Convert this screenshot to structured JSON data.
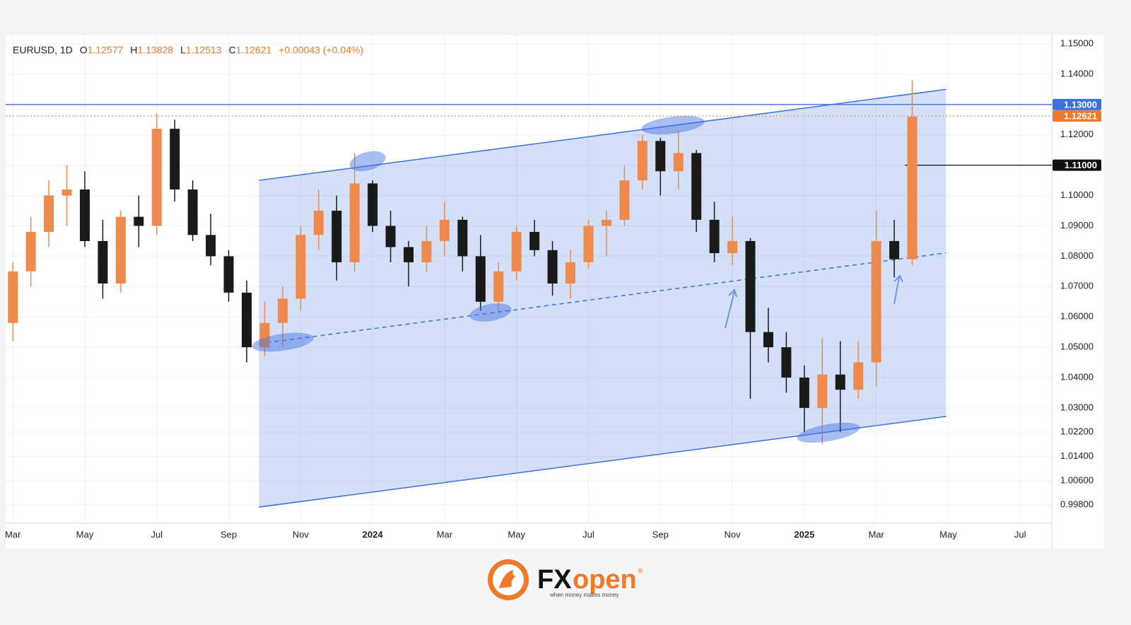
{
  "chart_data": {
    "type": "candlestick",
    "legend": {
      "symbol": "EURUSD, 1D",
      "items": [
        {
          "label": "O",
          "value": "1.12577"
        },
        {
          "label": "H",
          "value": "1.13828"
        },
        {
          "label": "L",
          "value": "1.12513"
        },
        {
          "label": "C",
          "value": "1.12621"
        }
      ],
      "change": "+0.00043 (+0.04%)"
    },
    "x": [
      0,
      0.5,
      1,
      1.5,
      2,
      2.5,
      3,
      3.5,
      4,
      4.5,
      5,
      5.5,
      6,
      6.5,
      7,
      7.5,
      8,
      8.5,
      9,
      9.5,
      10,
      10.5,
      11,
      11.5,
      12,
      12.5,
      13,
      13.5,
      14,
      14.5,
      15,
      15.5,
      16,
      16.5,
      17,
      17.5,
      18,
      18.5,
      19,
      19.5,
      20,
      20.5,
      21,
      21.5,
      22,
      22.5,
      23,
      23.5,
      24,
      24.5,
      25
    ],
    "open": [
      1.058,
      1.075,
      1.088,
      1.1,
      1.102,
      1.085,
      1.071,
      1.093,
      1.09,
      1.122,
      1.102,
      1.087,
      1.08,
      1.068,
      1.05,
      1.058,
      1.066,
      1.087,
      1.095,
      1.078,
      1.104,
      1.09,
      1.083,
      1.078,
      1.085,
      1.092,
      1.08,
      1.065,
      1.075,
      1.088,
      1.082,
      1.071,
      1.078,
      1.09,
      1.092,
      1.105,
      1.118,
      1.108,
      1.114,
      1.092,
      1.081,
      1.085,
      1.055,
      1.05,
      1.04,
      1.03,
      1.041,
      1.036,
      1.045,
      1.085,
      1.079
    ],
    "high": [
      1.078,
      1.093,
      1.105,
      1.11,
      1.108,
      1.092,
      1.095,
      1.1,
      1.127,
      1.125,
      1.105,
      1.094,
      1.082,
      1.072,
      1.065,
      1.07,
      1.09,
      1.102,
      1.1,
      1.114,
      1.105,
      1.095,
      1.085,
      1.09,
      1.098,
      1.093,
      1.087,
      1.078,
      1.09,
      1.092,
      1.085,
      1.082,
      1.092,
      1.095,
      1.11,
      1.12,
      1.119,
      1.121,
      1.115,
      1.098,
      1.093,
      1.086,
      1.063,
      1.055,
      1.044,
      1.053,
      1.052,
      1.052,
      1.095,
      1.092,
      1.138
    ],
    "low": [
      1.052,
      1.07,
      1.083,
      1.09,
      1.083,
      1.066,
      1.068,
      1.083,
      1.087,
      1.098,
      1.085,
      1.077,
      1.065,
      1.045,
      1.047,
      1.05,
      1.062,
      1.082,
      1.072,
      1.075,
      1.088,
      1.078,
      1.07,
      1.075,
      1.08,
      1.075,
      1.062,
      1.062,
      1.072,
      1.08,
      1.067,
      1.066,
      1.076,
      1.08,
      1.09,
      1.102,
      1.1,
      1.102,
      1.088,
      1.078,
      1.077,
      1.033,
      1.045,
      1.035,
      1.022,
      1.018,
      1.022,
      1.033,
      1.037,
      1.073,
      1.077
    ],
    "close": [
      1.075,
      1.088,
      1.1,
      1.102,
      1.085,
      1.071,
      1.093,
      1.09,
      1.122,
      1.102,
      1.087,
      1.08,
      1.068,
      1.05,
      1.058,
      1.066,
      1.087,
      1.095,
      1.078,
      1.104,
      1.09,
      1.083,
      1.078,
      1.085,
      1.092,
      1.08,
      1.065,
      1.075,
      1.088,
      1.082,
      1.071,
      1.078,
      1.09,
      1.092,
      1.105,
      1.118,
      1.108,
      1.114,
      1.092,
      1.081,
      1.085,
      1.055,
      1.05,
      1.04,
      1.03,
      1.041,
      1.036,
      1.045,
      1.085,
      1.079,
      1.126
    ],
    "up_color": "#ee8a4e",
    "down_color": "#1a1a1a",
    "channel": {
      "x": [
        6.84,
        25.94
      ],
      "upper": [
        1.105,
        1.135
      ],
      "lower": [
        0.9973,
        1.0272
      ],
      "color": "#3d6fe0"
    },
    "price_lines": [
      {
        "value": 1.13,
        "label": "1.13000",
        "color": "#3d6fe0",
        "style": "solid",
        "from": -0.2
      },
      {
        "value": 1.12621,
        "label": "1.12621",
        "color": "#f07a29",
        "style": "dotted",
        "from": -0.2
      },
      {
        "value": 1.11,
        "label": "1.11000",
        "color": "#111111",
        "style": "solid",
        "from": 24.8
      }
    ],
    "xlim": [
      -0.2,
      28.88
    ],
    "ylim": [
      0.992,
      1.1528
    ],
    "xticks": [
      {
        "value": 0,
        "label": "Mar"
      },
      {
        "value": 2,
        "label": "May"
      },
      {
        "value": 4,
        "label": "Jul"
      },
      {
        "value": 6,
        "label": "Sep"
      },
      {
        "value": 8,
        "label": "Nov"
      },
      {
        "value": 10,
        "label": "2024"
      },
      {
        "value": 12,
        "label": "Mar"
      },
      {
        "value": 14,
        "label": "May"
      },
      {
        "value": 16,
        "label": "Jul"
      },
      {
        "value": 18,
        "label": "Sep"
      },
      {
        "value": 20,
        "label": "Nov"
      },
      {
        "value": 22,
        "label": "2025"
      },
      {
        "value": 24,
        "label": "Mar"
      },
      {
        "value": 26,
        "label": "May"
      },
      {
        "value": 28,
        "label": "Jul"
      }
    ],
    "yticks": [
      {
        "value": 1.15,
        "label": "1.15000"
      },
      {
        "value": 1.14,
        "label": "1.14000"
      },
      {
        "value": 1.13,
        "label": "1.13000"
      },
      {
        "value": 1.12,
        "label": "1.12000"
      },
      {
        "value": 1.11,
        "label": "1.11000"
      },
      {
        "value": 1.1,
        "label": "1.10000"
      },
      {
        "value": 1.09,
        "label": "1.09000"
      },
      {
        "value": 1.08,
        "label": "1.08000"
      },
      {
        "value": 1.07,
        "label": "1.07000"
      },
      {
        "value": 1.06,
        "label": "1.06000"
      },
      {
        "value": 1.05,
        "label": "1.05000"
      },
      {
        "value": 1.04,
        "label": "1.04000"
      },
      {
        "value": 1.03,
        "label": "1.03000"
      },
      {
        "value": 1.022,
        "label": "1.02200"
      },
      {
        "value": 1.014,
        "label": "1.01400"
      },
      {
        "value": 1.006,
        "label": "1.00600"
      },
      {
        "value": 0.998,
        "label": "0.99800"
      }
    ],
    "grid": true
  },
  "footer": {
    "brand_fx": "FX",
    "brand_open": "open",
    "registered": "®",
    "tagline": "when money makes money"
  }
}
